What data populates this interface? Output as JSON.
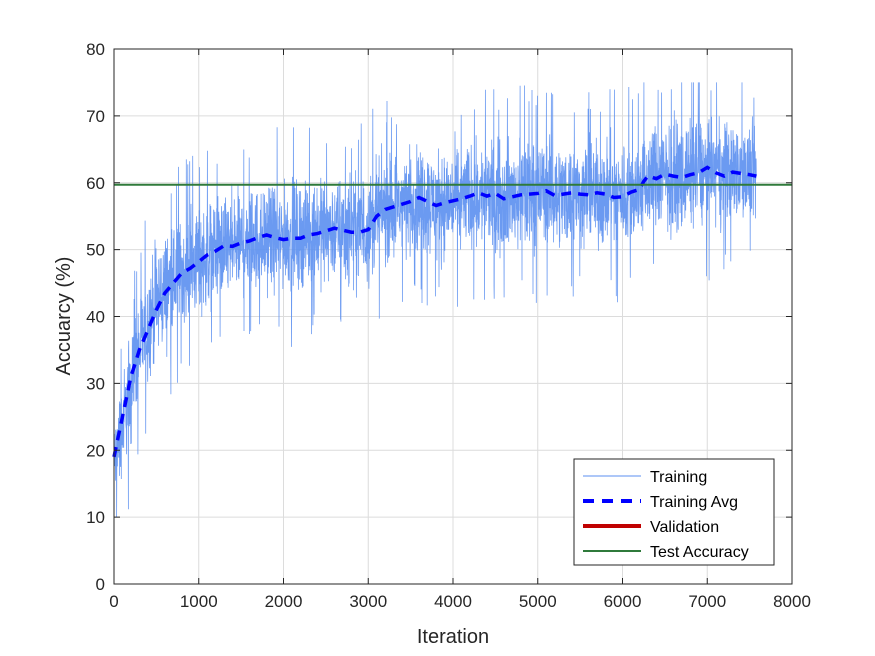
{
  "chart_data": {
    "type": "line",
    "title": "",
    "xlabel": "Iteration",
    "ylabel": "Accuarcy (%)",
    "xlim": [
      0,
      8000
    ],
    "ylim": [
      0,
      80
    ],
    "xticks": [
      0,
      1000,
      2000,
      3000,
      4000,
      5000,
      6000,
      7000,
      8000
    ],
    "yticks": [
      0,
      10,
      20,
      30,
      40,
      50,
      60,
      70,
      80
    ],
    "grid": true,
    "legend_position": "bottom-right",
    "series": [
      {
        "name": "Training",
        "style": "thin-noisy-line",
        "color": "#5b8ff0",
        "x": [
          0,
          50,
          100,
          150,
          200,
          300,
          400,
          500,
          600,
          700,
          800,
          900,
          1000,
          1200,
          1400,
          1600,
          1800,
          2000,
          2200,
          2400,
          2600,
          2800,
          3000,
          3100,
          3200,
          3400,
          3600,
          3800,
          4000,
          4200,
          4400,
          4600,
          4800,
          5000,
          5200,
          5400,
          5600,
          5800,
          6000,
          6200,
          6300,
          6500,
          6700,
          6900,
          7100,
          7300,
          7580
        ],
        "center": [
          18,
          21,
          24,
          27,
          30,
          35,
          39,
          42,
          44,
          45.5,
          46.5,
          47.5,
          48.5,
          50,
          50.5,
          51.3,
          52,
          51.7,
          52.2,
          52.8,
          53.2,
          52.8,
          53.2,
          55.5,
          56,
          56.8,
          57.5,
          57,
          57.2,
          58,
          58,
          57.8,
          58.2,
          58.5,
          58.5,
          58.2,
          58.5,
          58.2,
          58.2,
          59,
          60.5,
          61,
          61,
          61.8,
          61.5,
          61.5,
          61
        ],
        "spread": [
          8,
          9,
          10,
          11,
          12,
          12,
          12,
          12,
          12,
          12,
          11,
          11,
          11,
          11,
          11,
          11,
          11,
          11,
          11,
          11,
          11,
          11,
          12,
          11,
          11,
          11,
          11,
          11,
          11,
          11,
          11,
          11,
          11,
          11,
          11,
          11,
          11,
          11,
          11,
          11,
          11,
          11,
          11,
          11,
          11,
          11,
          10
        ],
        "min": 10,
        "max": 75
      },
      {
        "name": "Training Avg",
        "style": "thick-dashed",
        "color": "#0000ff",
        "x": [
          0,
          50,
          100,
          150,
          200,
          250,
          300,
          400,
          500,
          600,
          700,
          800,
          900,
          1000,
          1100,
          1200,
          1300,
          1400,
          1500,
          1600,
          1700,
          1800,
          1900,
          2000,
          2100,
          2200,
          2300,
          2400,
          2500,
          2600,
          2700,
          2800,
          2900,
          3000,
          3100,
          3200,
          3300,
          3400,
          3500,
          3600,
          3700,
          3800,
          3900,
          4000,
          4100,
          4200,
          4300,
          4400,
          4500,
          4600,
          4700,
          4800,
          4900,
          5000,
          5100,
          5200,
          5300,
          5400,
          5500,
          5600,
          5700,
          5800,
          5900,
          6000,
          6100,
          6200,
          6250,
          6300,
          6400,
          6500,
          6600,
          6700,
          6800,
          6900,
          7000,
          7100,
          7200,
          7300,
          7400,
          7500,
          7580
        ],
        "y": [
          19,
          22,
          25,
          28,
          31,
          33,
          35,
          38,
          41,
          43.5,
          45,
          46.5,
          47.2,
          48.2,
          49.2,
          49.8,
          50.6,
          50.5,
          51,
          51.3,
          51.8,
          52.2,
          51.8,
          51.5,
          51.7,
          51.7,
          52.2,
          52.4,
          52.8,
          53.2,
          52.9,
          52.6,
          52.6,
          53,
          55,
          56,
          56.4,
          56.8,
          57.2,
          57.8,
          57.2,
          56.6,
          57,
          57.3,
          57.6,
          58,
          58.5,
          58,
          58.4,
          57.6,
          57.9,
          58.2,
          58.3,
          58.4,
          58.8,
          58.1,
          58.3,
          58.5,
          58.3,
          58.2,
          58.5,
          58.3,
          57.8,
          57.9,
          58.6,
          59,
          60.2,
          61,
          60.6,
          61.3,
          61,
          60.8,
          61.2,
          61.5,
          62.3,
          61.5,
          61,
          61.6,
          61.4,
          61.2,
          61
        ]
      },
      {
        "name": "Validation",
        "style": "solid",
        "color": "#c00000",
        "x": [],
        "y": []
      },
      {
        "name": "Test Accuracy",
        "style": "horizontal-line",
        "color": "#2f7a3b",
        "y": 59.7
      }
    ],
    "legend": [
      "Training",
      "Training Avg",
      "Validation",
      "Test Accuracy"
    ]
  }
}
